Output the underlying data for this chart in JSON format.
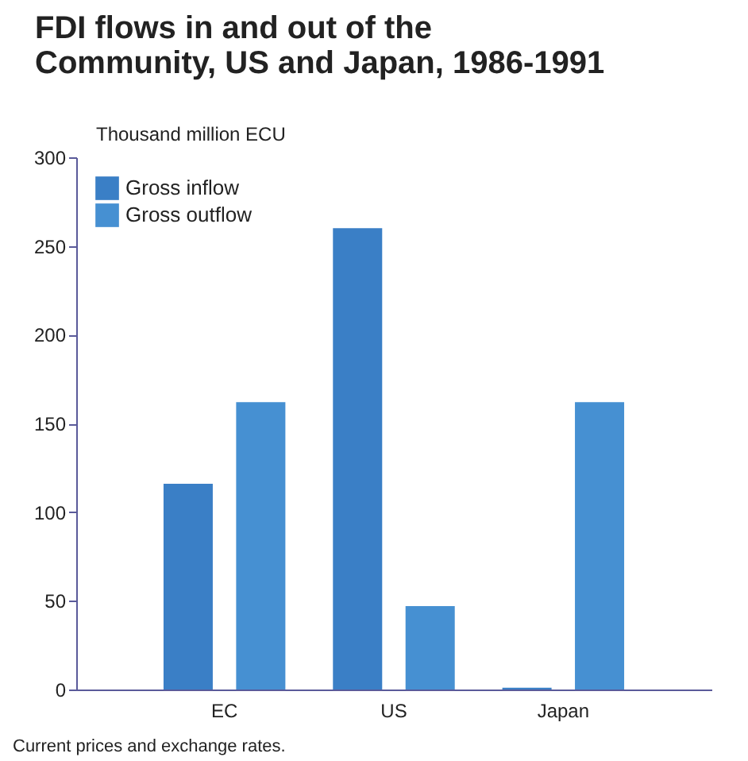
{
  "chart_data": {
    "type": "bar",
    "title": "FDI flows in and out of the Community, US and Japan, 1986-1991",
    "ylabel": "Thousand million ECU",
    "annotations": [
      "Current prices and exchange rates."
    ],
    "categories": [
      "EC",
      "US",
      "Japan"
    ],
    "series": [
      {
        "name": "Gross inflow",
        "color": "#3a7fc6",
        "values": [
          116,
          260,
          1
        ]
      },
      {
        "name": "Gross outflow",
        "color": "#4690d2",
        "values": [
          162,
          47,
          162
        ]
      }
    ],
    "ylim": [
      0,
      300
    ],
    "yticks": [
      0,
      50,
      100,
      150,
      200,
      250,
      300
    ],
    "grid": false,
    "legend": "top left"
  }
}
